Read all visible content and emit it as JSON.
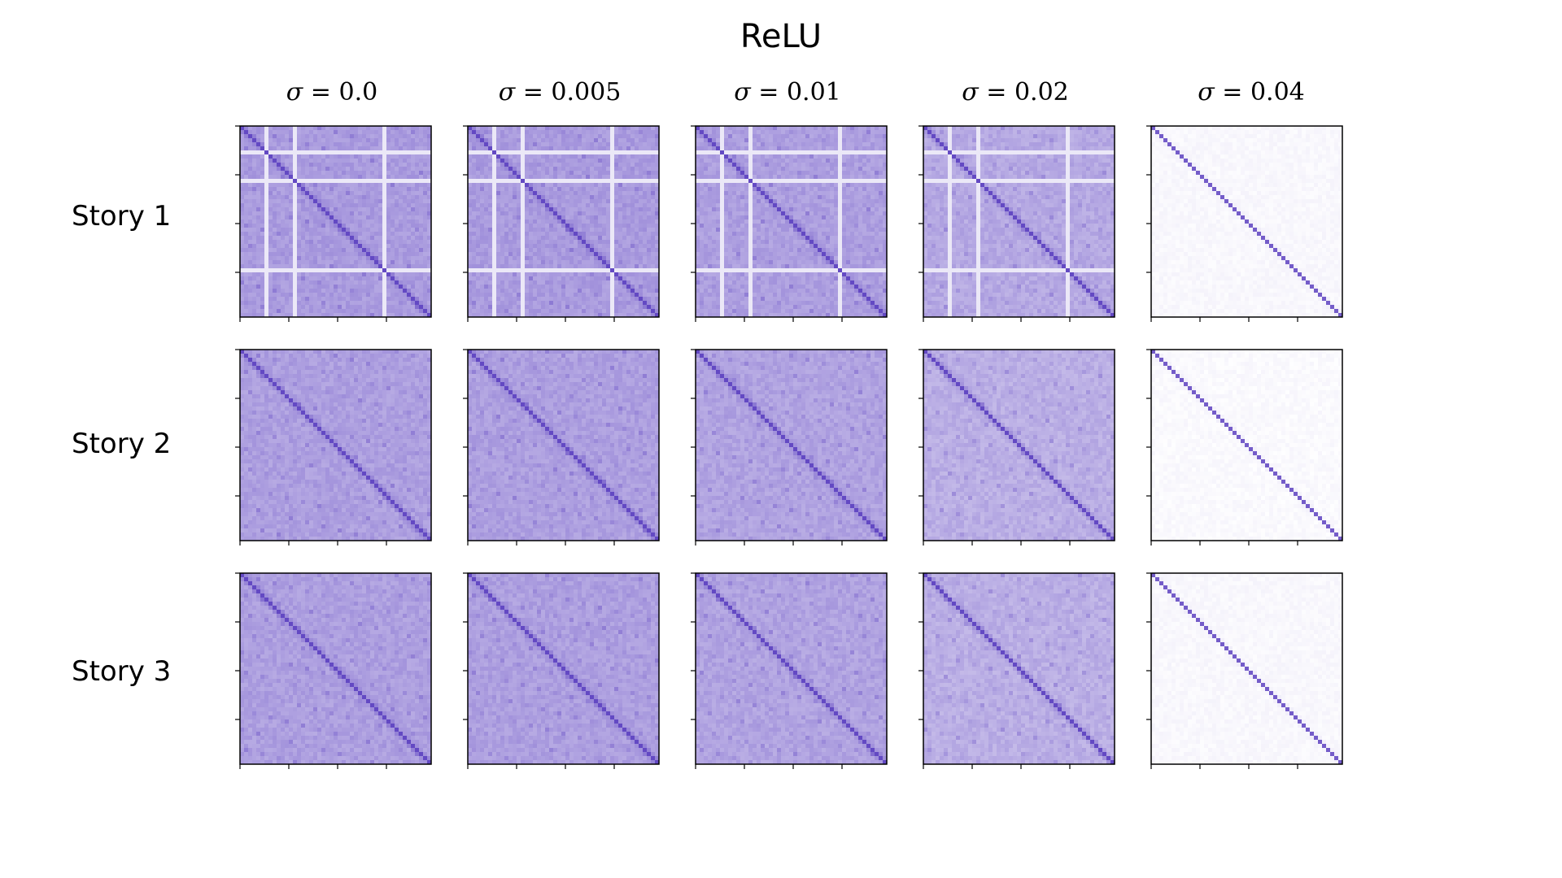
{
  "title": "ReLU",
  "columns": [
    {
      "symbol": "σ",
      "op": " = ",
      "value": "0.0"
    },
    {
      "symbol": "σ",
      "op": " = ",
      "value": "0.005"
    },
    {
      "symbol": "σ",
      "op": " = ",
      "value": "0.01"
    },
    {
      "symbol": "σ",
      "op": " = ",
      "value": "0.02"
    },
    {
      "symbol": "σ",
      "op": " = ",
      "value": "0.04"
    }
  ],
  "rows": [
    {
      "label": "Story 1"
    },
    {
      "label": "Story 2"
    },
    {
      "label": "Story 3"
    }
  ],
  "colors": {
    "low": "#ffffff",
    "high": "#5b3fc0",
    "frame": "#000000"
  },
  "chart_data": {
    "type": "heatmap",
    "description_kind": "similarity matrices",
    "tick_labels_shown": false,
    "ticks_per_axis": 4,
    "panels": [
      {
        "story": "Story 1",
        "sigma": 0.0,
        "background_intensity": 0.52,
        "diagonal_intensity": 0.95,
        "bands": true
      },
      {
        "story": "Story 1",
        "sigma": 0.005,
        "background_intensity": 0.52,
        "diagonal_intensity": 0.95,
        "bands": true
      },
      {
        "story": "Story 1",
        "sigma": 0.01,
        "background_intensity": 0.5,
        "diagonal_intensity": 0.95,
        "bands": true
      },
      {
        "story": "Story 1",
        "sigma": 0.02,
        "background_intensity": 0.45,
        "diagonal_intensity": 0.95,
        "bands": true
      },
      {
        "story": "Story 1",
        "sigma": 0.04,
        "background_intensity": 0.04,
        "diagonal_intensity": 0.85,
        "bands": false
      },
      {
        "story": "Story 2",
        "sigma": 0.0,
        "background_intensity": 0.5,
        "diagonal_intensity": 0.95,
        "bands": false
      },
      {
        "story": "Story 2",
        "sigma": 0.005,
        "background_intensity": 0.5,
        "diagonal_intensity": 0.95,
        "bands": false
      },
      {
        "story": "Story 2",
        "sigma": 0.01,
        "background_intensity": 0.48,
        "diagonal_intensity": 0.95,
        "bands": false
      },
      {
        "story": "Story 2",
        "sigma": 0.02,
        "background_intensity": 0.42,
        "diagonal_intensity": 0.95,
        "bands": false
      },
      {
        "story": "Story 2",
        "sigma": 0.04,
        "background_intensity": 0.03,
        "diagonal_intensity": 0.85,
        "bands": false
      },
      {
        "story": "Story 3",
        "sigma": 0.0,
        "background_intensity": 0.5,
        "diagonal_intensity": 0.95,
        "bands": false
      },
      {
        "story": "Story 3",
        "sigma": 0.005,
        "background_intensity": 0.5,
        "diagonal_intensity": 0.95,
        "bands": false
      },
      {
        "story": "Story 3",
        "sigma": 0.01,
        "background_intensity": 0.48,
        "diagonal_intensity": 0.95,
        "bands": false
      },
      {
        "story": "Story 3",
        "sigma": 0.02,
        "background_intensity": 0.42,
        "diagonal_intensity": 0.95,
        "bands": false
      },
      {
        "story": "Story 3",
        "sigma": 0.04,
        "background_intensity": 0.04,
        "diagonal_intensity": 0.85,
        "bands": false
      }
    ]
  }
}
